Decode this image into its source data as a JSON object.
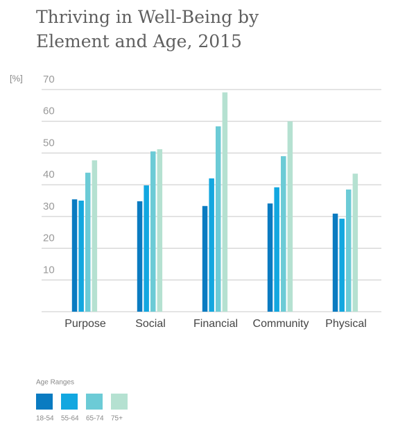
{
  "chart_data": {
    "type": "bar",
    "title": [
      "Thriving in Well-Being by",
      "Element and Age, 2015"
    ],
    "y_label": "[%]",
    "legend_title": "Age Ranges",
    "categories": [
      "Purpose",
      "Social",
      "Financial",
      "Community",
      "Physical"
    ],
    "series": [
      {
        "name": "18-54",
        "color": "#0a7bc1",
        "values": [
          35.4,
          34.8,
          33.3,
          34.1,
          30.9
        ]
      },
      {
        "name": "55-64",
        "color": "#12a7e0",
        "values": [
          35,
          39.8,
          42,
          39.2,
          29.3
        ]
      },
      {
        "name": "65-74",
        "color": "#6ccbd6",
        "values": [
          43.8,
          50.5,
          58.4,
          49,
          38.5
        ]
      },
      {
        "name": "75+",
        "color": "#b5e1d1",
        "values": [
          47.7,
          51.2,
          69.1,
          60,
          43.5
        ]
      }
    ],
    "ylim": [
      0,
      70
    ],
    "yticks": [
      10,
      20,
      30,
      40,
      50,
      60,
      70
    ],
    "grid": true
  }
}
